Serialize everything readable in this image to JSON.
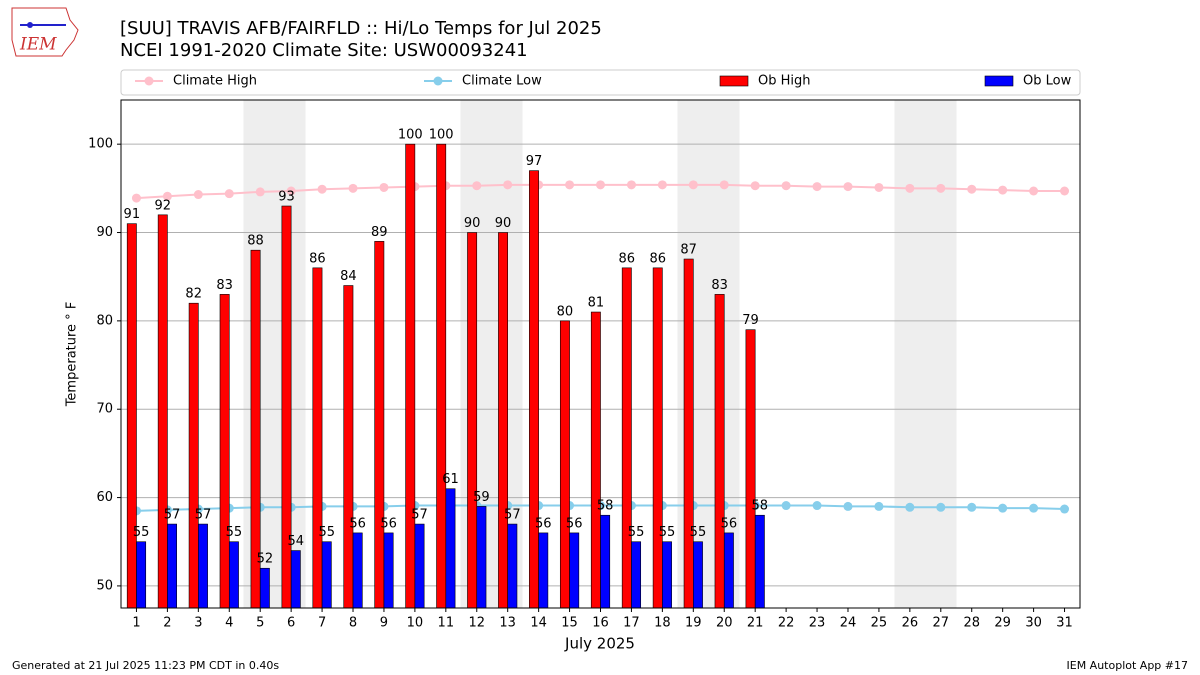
{
  "chart_data": {
    "type": "bar",
    "logo_text": "IEM",
    "title": "[SUU] TRAVIS AFB/FAIRFLD :: Hi/Lo Temps for Jul 2025",
    "subtitle": "NCEI 1991-2020 Climate Site: USW00093241",
    "y_label": "Temperature $^\\circ$F",
    "x_label": "July 2025",
    "footer_left": "Generated at 21 Jul 2025 11:23 PM CDT in 0.40s",
    "footer_right": "IEM Autoplot App #17",
    "categories": [
      "1",
      "2",
      "3",
      "4",
      "5",
      "6",
      "7",
      "8",
      "9",
      "10",
      "11",
      "12",
      "13",
      "14",
      "15",
      "16",
      "17",
      "18",
      "19",
      "20",
      "21",
      "22",
      "23",
      "24",
      "25",
      "26",
      "27",
      "28",
      "29",
      "30",
      "31"
    ],
    "series": [
      {
        "name": "Climate High",
        "type": "line",
        "color": "#ffc0cb",
        "values": [
          93.9,
          94.1,
          94.3,
          94.4,
          94.6,
          94.7,
          94.9,
          95.0,
          95.1,
          95.2,
          95.3,
          95.3,
          95.4,
          95.4,
          95.4,
          95.4,
          95.4,
          95.4,
          95.4,
          95.4,
          95.3,
          95.3,
          95.2,
          95.2,
          95.1,
          95.0,
          95.0,
          94.9,
          94.8,
          94.7,
          94.7
        ]
      },
      {
        "name": "Climate Low",
        "type": "line",
        "color": "#87ceeb",
        "values": [
          58.5,
          58.6,
          58.7,
          58.8,
          58.9,
          58.9,
          59.0,
          59.0,
          59.0,
          59.1,
          59.1,
          59.1,
          59.1,
          59.1,
          59.1,
          59.1,
          59.1,
          59.1,
          59.1,
          59.1,
          59.1,
          59.1,
          59.1,
          59.0,
          59.0,
          58.9,
          58.9,
          58.9,
          58.8,
          58.8,
          58.7
        ]
      },
      {
        "name": "Ob High",
        "type": "bar",
        "color": "#ff0000",
        "values": [
          91,
          92,
          82,
          83,
          88,
          93,
          86,
          84,
          89,
          100,
          100,
          90,
          90,
          97,
          80,
          81,
          86,
          86,
          87,
          83,
          79,
          null,
          null,
          null,
          null,
          null,
          null,
          null,
          null,
          null,
          null
        ]
      },
      {
        "name": "Ob Low",
        "type": "bar",
        "color": "#0000ff",
        "values": [
          55,
          57,
          57,
          55,
          52,
          54,
          55,
          56,
          56,
          57,
          61,
          59,
          57,
          56,
          56,
          58,
          55,
          55,
          55,
          56,
          58,
          null,
          null,
          null,
          null,
          null,
          null,
          null,
          null,
          null,
          null
        ]
      }
    ],
    "ylim": [
      47.5,
      105
    ],
    "yticks": [
      50,
      60,
      70,
      80,
      90,
      100
    ],
    "grid": true
  }
}
